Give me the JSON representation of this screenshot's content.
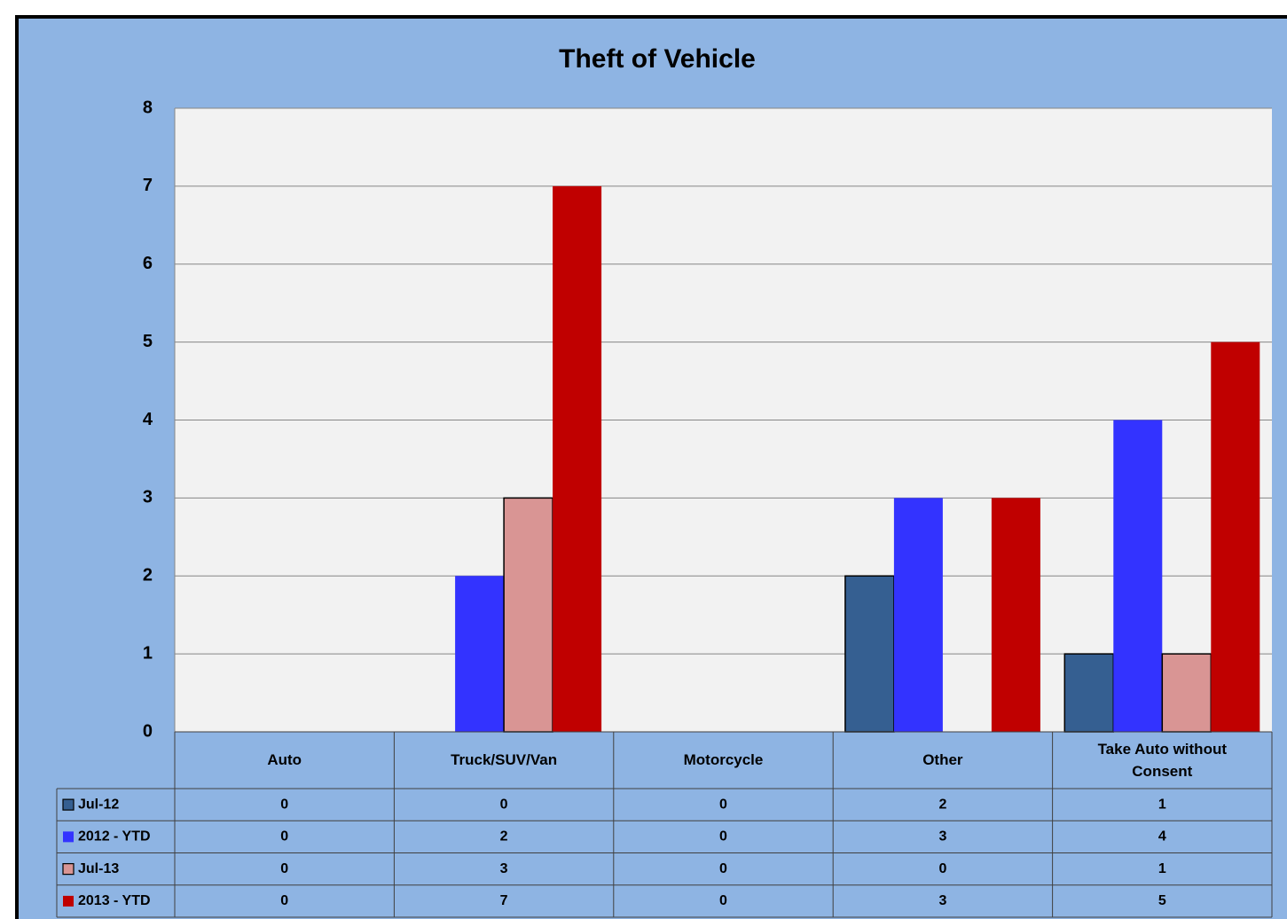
{
  "chart_data": {
    "type": "bar",
    "title": "Theft of Vehicle",
    "categories": [
      "Auto",
      "Truck/SUV/Van",
      "Motorcycle",
      "Other",
      "Take Auto without Consent"
    ],
    "series": [
      {
        "name": "Jul-12",
        "color": "#355f91",
        "outline": true,
        "values": [
          0,
          0,
          0,
          2,
          1
        ]
      },
      {
        "name": "2012 - YTD",
        "color": "#3333ff",
        "outline": false,
        "values": [
          0,
          2,
          0,
          3,
          4
        ]
      },
      {
        "name": "Jul-13",
        "color": "#d99594",
        "outline": true,
        "values": [
          0,
          3,
          0,
          0,
          1
        ]
      },
      {
        "name": "2013 - YTD",
        "color": "#c00000",
        "outline": false,
        "values": [
          0,
          7,
          0,
          3,
          5
        ]
      }
    ],
    "ylim": [
      0,
      8
    ],
    "yticks": [
      0,
      1,
      2,
      3,
      4,
      5,
      6,
      7,
      8
    ],
    "grid": true
  }
}
